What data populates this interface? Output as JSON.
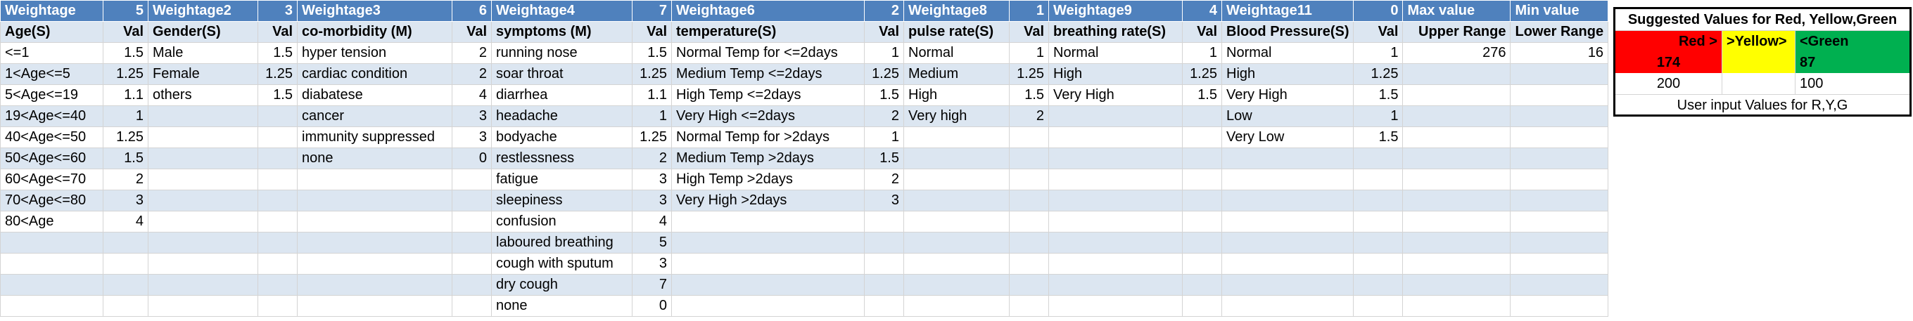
{
  "header": [
    {
      "label": "Weightage"
    },
    {
      "label": "5"
    },
    {
      "label": "Weightage2"
    },
    {
      "label": "3"
    },
    {
      "label": "Weightage3"
    },
    {
      "label": "6"
    },
    {
      "label": "Weightage4"
    },
    {
      "label": "7"
    },
    {
      "label": "Weightage6"
    },
    {
      "label": "2"
    },
    {
      "label": "Weightage8"
    },
    {
      "label": "1"
    },
    {
      "label": "Weightage9"
    },
    {
      "label": "4"
    },
    {
      "label": "Weightage11"
    },
    {
      "label": "0"
    },
    {
      "label": "Max value"
    },
    {
      "label": "Min value"
    }
  ],
  "subheader": [
    "Age(S)",
    "Val",
    "Gender(S)",
    "Val",
    "co-morbidity (M)",
    "Val",
    "symptoms (M)",
    "Val",
    "temperature(S)",
    "Val",
    "pulse rate(S)",
    "Val",
    "breathing rate(S)",
    "Val",
    "Blood Pressure(S)",
    "Val",
    "Upper Range",
    "Lower Range"
  ],
  "rows": [
    [
      "<=1",
      "1.5",
      "Male",
      "1.5",
      "hyper tension",
      "2",
      "running nose",
      "1.5",
      "Normal Temp for <=2days",
      "1",
      "Normal",
      "1",
      "Normal",
      "1",
      "Normal",
      "1",
      "276",
      "16"
    ],
    [
      "1<Age<=5",
      "1.25",
      "Female",
      "1.25",
      "cardiac condition",
      "2",
      "soar throat",
      "1.25",
      "Medium Temp <=2days",
      "1.25",
      "Medium",
      "1.25",
      "High",
      "1.25",
      "High",
      "1.25",
      "",
      ""
    ],
    [
      "5<Age<=19",
      "1.1",
      "others",
      "1.5",
      "diabatese",
      "4",
      "diarrhea",
      "1.1",
      "High Temp <=2days",
      "1.5",
      "High",
      "1.5",
      "Very High",
      "1.5",
      "Very High",
      "1.5",
      "",
      ""
    ],
    [
      "19<Age<=40",
      "1",
      "",
      "",
      "cancer",
      "3",
      "headache",
      "1",
      "Very High <=2days",
      "2",
      "Very high",
      "2",
      "",
      "",
      "Low",
      "1",
      "",
      ""
    ],
    [
      "40<Age<=50",
      "1.25",
      "",
      "",
      "immunity suppressed",
      "3",
      "bodyache",
      "1.25",
      "Normal Temp for >2days",
      "1",
      "",
      "",
      "",
      "",
      "Very Low",
      "1.5",
      "",
      ""
    ],
    [
      "50<Age<=60",
      "1.5",
      "",
      "",
      "none",
      "0",
      "restlessness",
      "2",
      "Medium Temp >2days",
      "1.5",
      "",
      "",
      "",
      "",
      "",
      "",
      "",
      ""
    ],
    [
      "60<Age<=70",
      "2",
      "",
      "",
      "",
      "",
      "fatigue",
      "3",
      "High Temp >2days",
      "2",
      "",
      "",
      "",
      "",
      "",
      "",
      "",
      ""
    ],
    [
      "70<Age<=80",
      "3",
      "",
      "",
      "",
      "",
      "sleepiness",
      "3",
      "Very High >2days",
      "3",
      "",
      "",
      "",
      "",
      "",
      "",
      "",
      ""
    ],
    [
      "80<Age",
      "4",
      "",
      "",
      "",
      "",
      "confusion",
      "4",
      "",
      "",
      "",
      "",
      "",
      "",
      "",
      "",
      "",
      ""
    ],
    [
      "",
      "",
      "",
      "",
      "",
      "",
      "laboured breathing",
      "5",
      "",
      "",
      "",
      "",
      "",
      "",
      "",
      "",
      "",
      ""
    ],
    [
      "",
      "",
      "",
      "",
      "",
      "",
      "cough with sputum",
      "3",
      "",
      "",
      "",
      "",
      "",
      "",
      "",
      "",
      "",
      ""
    ],
    [
      "",
      "",
      "",
      "",
      "",
      "",
      "dry cough",
      "7",
      "",
      "",
      "",
      "",
      "",
      "",
      "",
      "",
      "",
      ""
    ],
    [
      "",
      "",
      "",
      "",
      "",
      "",
      "none",
      "0",
      "",
      "",
      "",
      "",
      "",
      "",
      "",
      "",
      "",
      ""
    ]
  ],
  "suggested": {
    "title": "Suggested Values for Red, Yellow,Green",
    "labels": {
      "red": "Red >",
      "yellow": ">Yellow>",
      "green": "<Green"
    },
    "computed": {
      "red": "174",
      "yellow": "",
      "green": "87"
    },
    "user": {
      "red": "200",
      "yellow": "",
      "green": "100"
    },
    "note": "User input Values for R,Y,G",
    "colors": {
      "red": "#ff0000",
      "yellow": "#ffff00",
      "green": "#00b050",
      "header": "#4f81bd",
      "band": "#dce6f1"
    }
  }
}
